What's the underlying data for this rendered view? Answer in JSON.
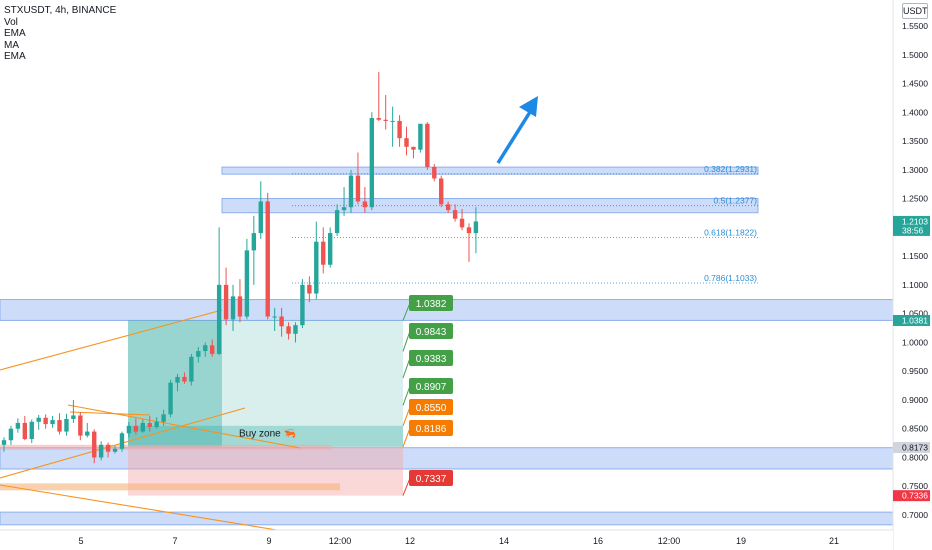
{
  "header": {
    "symbol": "STXUSDT, 4h, BINANCE",
    "indicators": [
      "Vol",
      "EMA",
      "MA",
      "EMA"
    ],
    "currency": "USDT"
  },
  "chart_data": {
    "type": "candlestick",
    "title": "STXUSDT, 4h, BINANCE",
    "y_axis": {
      "ticks": [
        "1.5500",
        "1.5000",
        "1.4500",
        "1.4000",
        "1.3500",
        "1.3000",
        "1.2500",
        "1.2000",
        "1.1500",
        "1.1000",
        "1.0500",
        "1.0000",
        "0.9500",
        "0.9000",
        "0.8500",
        "0.8000",
        "0.7500",
        "0.7000"
      ],
      "range": [
        0.685,
        1.575
      ]
    },
    "x_axis": {
      "ticks": [
        "5",
        "7",
        "9",
        "12:00",
        "12",
        "14",
        "16",
        "12:00",
        "19",
        "21"
      ]
    },
    "price_badges": [
      {
        "text": "1.2103",
        "sub": "38:56",
        "value": 1.2103,
        "color": "#26a69a"
      },
      {
        "text": "1.0381",
        "value": 1.0381,
        "color": "#26a69a"
      },
      {
        "text": "0.8173",
        "value": 0.8173,
        "color": "#d1d4dc"
      },
      {
        "text": "0.7336",
        "value": 0.7336,
        "color": "#f23645"
      }
    ],
    "fib_levels": [
      {
        "label": "0.382(1.2931)",
        "value": 1.2931
      },
      {
        "label": "0.5(1.2377)",
        "value": 1.2377
      },
      {
        "label": "0.618(1.1822)",
        "value": 1.1822
      },
      {
        "label": "0.786(1.1033)",
        "value": 1.1033
      }
    ],
    "targets": [
      {
        "text": "1.0382",
        "value": 1.0382,
        "kind": "tp"
      },
      {
        "text": "0.9843",
        "value": 0.9843,
        "kind": "tp"
      },
      {
        "text": "0.9383",
        "value": 0.9383,
        "kind": "tp"
      },
      {
        "text": "0.8907",
        "value": 0.8907,
        "kind": "tp"
      },
      {
        "text": "0.8550",
        "value": 0.855,
        "kind": "entry"
      },
      {
        "text": "0.8186",
        "value": 0.8186,
        "kind": "entry"
      },
      {
        "text": "0.7337",
        "value": 0.7337,
        "kind": "sl"
      }
    ],
    "annotations": [
      {
        "text": "Buy zone 🦐",
        "value": 0.8435
      }
    ],
    "zones": [
      {
        "from": 1.0382,
        "to": 1.0745
      },
      {
        "from": 0.78,
        "to": 0.817
      },
      {
        "from": 0.683,
        "to": 0.705
      },
      {
        "from": 1.2254,
        "to": 1.2502
      },
      {
        "from": 1.2924,
        "to": 1.3047
      }
    ],
    "candles": [
      {
        "o": 0.822,
        "h": 0.835,
        "l": 0.81,
        "c": 0.83
      },
      {
        "o": 0.83,
        "h": 0.855,
        "l": 0.822,
        "c": 0.85
      },
      {
        "o": 0.85,
        "h": 0.868,
        "l": 0.843,
        "c": 0.86
      },
      {
        "o": 0.86,
        "h": 0.872,
        "l": 0.83,
        "c": 0.832
      },
      {
        "o": 0.832,
        "h": 0.866,
        "l": 0.825,
        "c": 0.862
      },
      {
        "o": 0.862,
        "h": 0.874,
        "l": 0.848,
        "c": 0.869
      },
      {
        "o": 0.869,
        "h": 0.875,
        "l": 0.85,
        "c": 0.858
      },
      {
        "o": 0.858,
        "h": 0.872,
        "l": 0.852,
        "c": 0.865
      },
      {
        "o": 0.865,
        "h": 0.877,
        "l": 0.84,
        "c": 0.845
      },
      {
        "o": 0.845,
        "h": 0.876,
        "l": 0.838,
        "c": 0.867
      },
      {
        "o": 0.867,
        "h": 0.9,
        "l": 0.86,
        "c": 0.873
      },
      {
        "o": 0.873,
        "h": 0.879,
        "l": 0.83,
        "c": 0.838
      },
      {
        "o": 0.838,
        "h": 0.86,
        "l": 0.835,
        "c": 0.845
      },
      {
        "o": 0.845,
        "h": 0.849,
        "l": 0.79,
        "c": 0.8
      },
      {
        "o": 0.8,
        "h": 0.828,
        "l": 0.795,
        "c": 0.822
      },
      {
        "o": 0.822,
        "h": 0.826,
        "l": 0.8,
        "c": 0.81
      },
      {
        "o": 0.81,
        "h": 0.82,
        "l": 0.807,
        "c": 0.815
      },
      {
        "o": 0.815,
        "h": 0.845,
        "l": 0.81,
        "c": 0.842
      },
      {
        "o": 0.842,
        "h": 0.862,
        "l": 0.835,
        "c": 0.855
      },
      {
        "o": 0.855,
        "h": 0.868,
        "l": 0.84,
        "c": 0.845
      },
      {
        "o": 0.845,
        "h": 0.866,
        "l": 0.843,
        "c": 0.86
      },
      {
        "o": 0.86,
        "h": 0.872,
        "l": 0.845,
        "c": 0.853
      },
      {
        "o": 0.853,
        "h": 0.87,
        "l": 0.85,
        "c": 0.862
      },
      {
        "o": 0.862,
        "h": 0.883,
        "l": 0.855,
        "c": 0.875
      },
      {
        "o": 0.875,
        "h": 0.935,
        "l": 0.87,
        "c": 0.93
      },
      {
        "o": 0.93,
        "h": 0.945,
        "l": 0.915,
        "c": 0.94
      },
      {
        "o": 0.94,
        "h": 0.948,
        "l": 0.928,
        "c": 0.932
      },
      {
        "o": 0.932,
        "h": 0.98,
        "l": 0.925,
        "c": 0.975
      },
      {
        "o": 0.975,
        "h": 0.992,
        "l": 0.965,
        "c": 0.985
      },
      {
        "o": 0.985,
        "h": 1.0,
        "l": 0.975,
        "c": 0.995
      },
      {
        "o": 0.995,
        "h": 1.005,
        "l": 0.975,
        "c": 0.98
      },
      {
        "o": 0.98,
        "h": 1.2,
        "l": 0.978,
        "c": 1.1
      },
      {
        "o": 1.1,
        "h": 1.13,
        "l": 1.03,
        "c": 1.04
      },
      {
        "o": 1.04,
        "h": 1.1,
        "l": 1.02,
        "c": 1.08
      },
      {
        "o": 1.08,
        "h": 1.11,
        "l": 1.035,
        "c": 1.045
      },
      {
        "o": 1.045,
        "h": 1.18,
        "l": 1.04,
        "c": 1.16
      },
      {
        "o": 1.16,
        "h": 1.22,
        "l": 1.1,
        "c": 1.19
      },
      {
        "o": 1.19,
        "h": 1.28,
        "l": 1.18,
        "c": 1.245
      },
      {
        "o": 1.245,
        "h": 1.26,
        "l": 1.04,
        "c": 1.045
      },
      {
        "o": 1.045,
        "h": 1.06,
        "l": 1.02,
        "c": 1.045
      },
      {
        "o": 1.045,
        "h": 1.06,
        "l": 1.01,
        "c": 1.028
      },
      {
        "o": 1.028,
        "h": 1.035,
        "l": 1.005,
        "c": 1.015
      },
      {
        "o": 1.015,
        "h": 1.035,
        "l": 1.0,
        "c": 1.03
      },
      {
        "o": 1.03,
        "h": 1.11,
        "l": 1.025,
        "c": 1.1
      },
      {
        "o": 1.1,
        "h": 1.115,
        "l": 1.07,
        "c": 1.085
      },
      {
        "o": 1.085,
        "h": 1.21,
        "l": 1.075,
        "c": 1.175
      },
      {
        "o": 1.175,
        "h": 1.2,
        "l": 1.12,
        "c": 1.135
      },
      {
        "o": 1.135,
        "h": 1.2,
        "l": 1.13,
        "c": 1.19
      },
      {
        "o": 1.19,
        "h": 1.24,
        "l": 1.185,
        "c": 1.23
      },
      {
        "o": 1.23,
        "h": 1.27,
        "l": 1.22,
        "c": 1.235
      },
      {
        "o": 1.235,
        "h": 1.3,
        "l": 1.225,
        "c": 1.29
      },
      {
        "o": 1.29,
        "h": 1.33,
        "l": 1.24,
        "c": 1.245
      },
      {
        "o": 1.245,
        "h": 1.27,
        "l": 1.225,
        "c": 1.235
      },
      {
        "o": 1.235,
        "h": 1.4,
        "l": 1.23,
        "c": 1.39
      },
      {
        "o": 1.39,
        "h": 1.47,
        "l": 1.385,
        "c": 1.387
      },
      {
        "o": 1.387,
        "h": 1.43,
        "l": 1.37,
        "c": 1.385
      },
      {
        "o": 1.385,
        "h": 1.41,
        "l": 1.34,
        "c": 1.385
      },
      {
        "o": 1.385,
        "h": 1.395,
        "l": 1.34,
        "c": 1.355
      },
      {
        "o": 1.355,
        "h": 1.375,
        "l": 1.325,
        "c": 1.34
      },
      {
        "o": 1.34,
        "h": 1.34,
        "l": 1.32,
        "c": 1.335
      },
      {
        "o": 1.335,
        "h": 1.38,
        "l": 1.33,
        "c": 1.38
      },
      {
        "o": 1.38,
        "h": 1.383,
        "l": 1.3,
        "c": 1.305
      },
      {
        "o": 1.305,
        "h": 1.31,
        "l": 1.28,
        "c": 1.285
      },
      {
        "o": 1.285,
        "h": 1.29,
        "l": 1.235,
        "c": 1.24
      },
      {
        "o": 1.24,
        "h": 1.245,
        "l": 1.225,
        "c": 1.23
      },
      {
        "o": 1.23,
        "h": 1.24,
        "l": 1.21,
        "c": 1.215
      },
      {
        "o": 1.215,
        "h": 1.232,
        "l": 1.195,
        "c": 1.2
      },
      {
        "o": 1.2,
        "h": 1.207,
        "l": 1.14,
        "c": 1.19
      },
      {
        "o": 1.19,
        "h": 1.235,
        "l": 1.155,
        "c": 1.2103
      }
    ]
  }
}
